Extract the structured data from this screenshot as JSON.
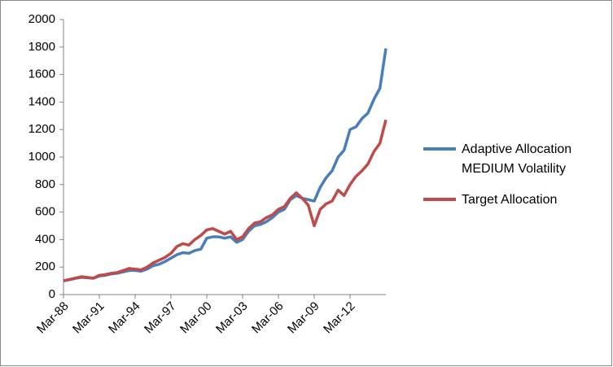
{
  "chart_data": {
    "type": "line",
    "categories": [
      "Mar-88",
      null,
      null,
      null,
      null,
      null,
      "Mar-91",
      null,
      null,
      null,
      null,
      null,
      "Mar-94",
      null,
      null,
      null,
      null,
      null,
      "Mar-97",
      null,
      null,
      null,
      null,
      null,
      "Mar-00",
      null,
      null,
      null,
      null,
      null,
      "Mar-03",
      null,
      null,
      null,
      null,
      null,
      "Mar-06",
      null,
      null,
      null,
      null,
      null,
      "Mar-09",
      null,
      null,
      null,
      null,
      null,
      "Mar-12",
      null,
      null,
      null,
      null,
      null,
      null
    ],
    "series": [
      {
        "name": "Adaptive Allocation MEDIUM Volatility",
        "color": "#4a7ebb",
        "values": [
          100,
          108,
          118,
          125,
          122,
          118,
          135,
          140,
          150,
          155,
          165,
          175,
          175,
          170,
          185,
          210,
          220,
          240,
          265,
          290,
          305,
          300,
          320,
          330,
          410,
          420,
          420,
          410,
          420,
          380,
          400,
          460,
          500,
          510,
          530,
          560,
          600,
          620,
          690,
          720,
          700,
          690,
          680,
          780,
          850,
          900,
          1000,
          1050,
          1200,
          1220,
          1280,
          1320,
          1420,
          1500,
          1790
        ]
      },
      {
        "name": "Target Allocation",
        "color": "#be4b48",
        "values": [
          100,
          110,
          120,
          130,
          125,
          120,
          140,
          145,
          155,
          160,
          175,
          190,
          185,
          180,
          200,
          230,
          250,
          270,
          300,
          350,
          370,
          360,
          400,
          430,
          470,
          480,
          460,
          440,
          460,
          400,
          420,
          480,
          520,
          530,
          560,
          580,
          620,
          640,
          700,
          740,
          700,
          650,
          500,
          620,
          660,
          680,
          760,
          720,
          800,
          860,
          900,
          950,
          1040,
          1100,
          1270
        ]
      }
    ],
    "ylim": [
      0,
      2000
    ],
    "yticks": [
      0,
      200,
      400,
      600,
      800,
      1000,
      1200,
      1400,
      1600,
      1800,
      2000
    ],
    "grid": false,
    "legend": "right"
  }
}
